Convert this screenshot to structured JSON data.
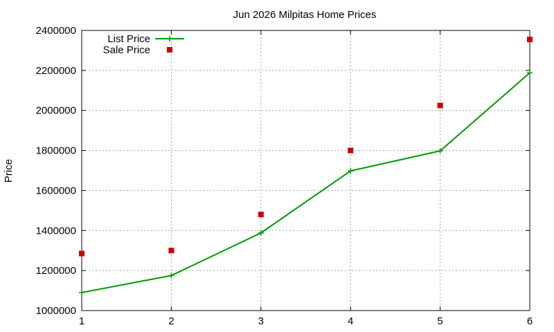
{
  "chart_data": {
    "type": "line",
    "title": "Jun 2026 Milpitas Home Prices",
    "xlabel": "",
    "ylabel": "Price",
    "x": [
      1,
      2,
      3,
      4,
      5,
      6
    ],
    "xlim": [
      1,
      6
    ],
    "ylim": [
      1000000,
      2400000
    ],
    "x_ticks": [
      "1",
      "2",
      "3",
      "4",
      "5",
      "6"
    ],
    "y_ticks": [
      "1000000",
      "1200000",
      "1400000",
      "1600000",
      "1800000",
      "2000000",
      "2200000",
      "2400000"
    ],
    "grid": true,
    "legend_position": "top-left",
    "series": [
      {
        "name": "List Price",
        "style": "line-with-plus-markers",
        "color": "#009900",
        "values": [
          1090000,
          1175000,
          1388000,
          1698000,
          1798000,
          2188000
        ]
      },
      {
        "name": "Sale Price",
        "style": "square-markers",
        "color": "#cc0000",
        "values": [
          1285000,
          1300000,
          1480000,
          1800000,
          2025000,
          2355000
        ]
      }
    ]
  }
}
